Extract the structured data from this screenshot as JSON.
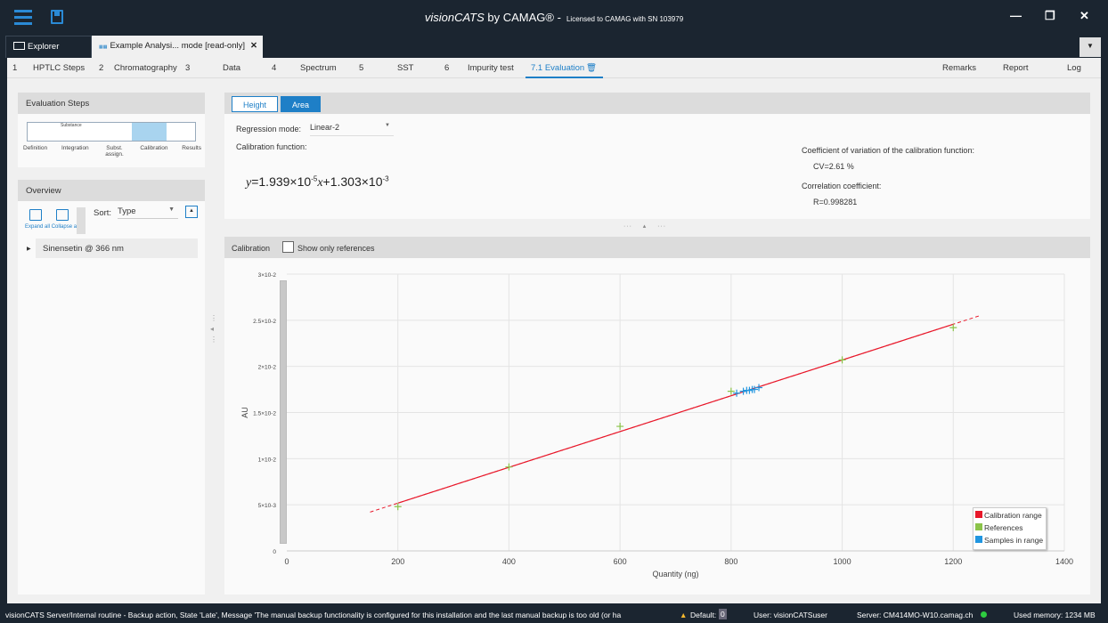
{
  "app": {
    "title_brand": "visionCATS",
    "title_by": "by CAMAG®",
    "title_sep": "-",
    "license": "Licensed to CAMAG with SN 103979"
  },
  "window": {
    "minimize": "—",
    "restore": "❐",
    "close": "✕"
  },
  "doc_tabs": [
    {
      "label": "Explorer",
      "icon": "folder-icon"
    },
    {
      "label": "Example Analysi... mode [read-only]",
      "icon": "analysis-icon",
      "close": "✕"
    }
  ],
  "tab_dropdown": "▼",
  "nav": {
    "items": [
      {
        "num": "1",
        "label": "HPTLC Steps"
      },
      {
        "num": "2",
        "label": "Chromatography"
      },
      {
        "num": "3",
        "label": "Data"
      },
      {
        "num": "4",
        "label": "Spectrum"
      },
      {
        "num": "5",
        "label": "SST"
      },
      {
        "num": "6",
        "label": "Impurity test"
      },
      {
        "num": "",
        "label": "7.1 Evaluation"
      }
    ],
    "active": "7.1 Evaluation",
    "right": [
      "Remarks",
      "Report",
      "Log"
    ]
  },
  "eval_steps": {
    "title": "Evaluation Steps",
    "steps": [
      "Definition",
      "Integration",
      "Subst. assign.",
      "Calibration",
      "Results"
    ],
    "substance_caption": "Substance",
    "active": "Calibration"
  },
  "overview": {
    "title": "Overview",
    "expand_all": "Expand all",
    "collapse_all": "Collapse all",
    "sort_label": "Sort:",
    "sort_value": "Type",
    "tree": [
      {
        "label": "Sinensetin @ 366 nm"
      }
    ]
  },
  "mode_buttons": {
    "height": "Height",
    "area": "Area",
    "active": "Area"
  },
  "regression": {
    "label": "Regression mode:",
    "value": "Linear-2",
    "function_label": "Calibration function:",
    "eq_y": "y",
    "eq_a": "=1.939×10",
    "eq_a_exp": "-5",
    "eq_x": "x",
    "eq_b": "+1.303×10",
    "eq_b_exp": "-3"
  },
  "stats": {
    "cv_label": "Coefficient of variation of the calibration function:",
    "cv_value": "CV=2.61 %",
    "r_label": "Correlation coefficient:",
    "r_value": "R=0.998281"
  },
  "calibration_header": {
    "title": "Calibration",
    "show_refs_label": "Show only references",
    "show_refs_checked": false
  },
  "chart_data": {
    "type": "scatter",
    "xlabel": "Quantity (ng)",
    "ylabel": "AU",
    "xlim": [
      0,
      1400
    ],
    "ylim": [
      0,
      0.03
    ],
    "x_ticks": [
      "0",
      "200",
      "400",
      "600",
      "800",
      "1000",
      "1200",
      "1400"
    ],
    "y_ticks": [
      "0",
      "5×10-3",
      "1×10-2",
      "1.5×10-2",
      "2×10-2",
      "2.5×10-2",
      "3×10-2"
    ],
    "grid": true,
    "legend_position": "bottom-right",
    "regression": {
      "slope": 1.939e-05,
      "intercept": 0.001303,
      "solid_range": [
        200,
        1200
      ],
      "dashed_range": [
        150,
        1250
      ]
    },
    "series": [
      {
        "name": "Calibration range",
        "color": "#e8182a",
        "kind": "line"
      },
      {
        "name": "References",
        "color": "#8bc34a",
        "points": [
          [
            200,
            0.0048
          ],
          [
            400,
            0.0091
          ],
          [
            600,
            0.0135
          ],
          [
            800,
            0.0173
          ],
          [
            1000,
            0.0207
          ],
          [
            1200,
            0.0242
          ]
        ]
      },
      {
        "name": "Samples in range",
        "color": "#2196e0",
        "points": [
          [
            810,
            0.0171
          ],
          [
            822,
            0.0173
          ],
          [
            828,
            0.0174
          ],
          [
            833,
            0.0174
          ],
          [
            838,
            0.0175
          ],
          [
            842,
            0.0175
          ],
          [
            850,
            0.0177
          ]
        ]
      }
    ]
  },
  "status": {
    "message": "visionCATS Server/Internal routine - Backup action, State 'Late', Message 'The manual backup functionality is configured for this installation and the last manual backup is too old (or ha",
    "default_label": "Default:",
    "default_count": "0",
    "user": "User: visionCATSuser",
    "server": "Server: CM414MO-W10.camag.ch",
    "memory": "Used memory: 1234 MB"
  },
  "colors": {
    "accent": "#1e7fc7",
    "topbar": "#1b2530",
    "online": "#2ecc40"
  }
}
